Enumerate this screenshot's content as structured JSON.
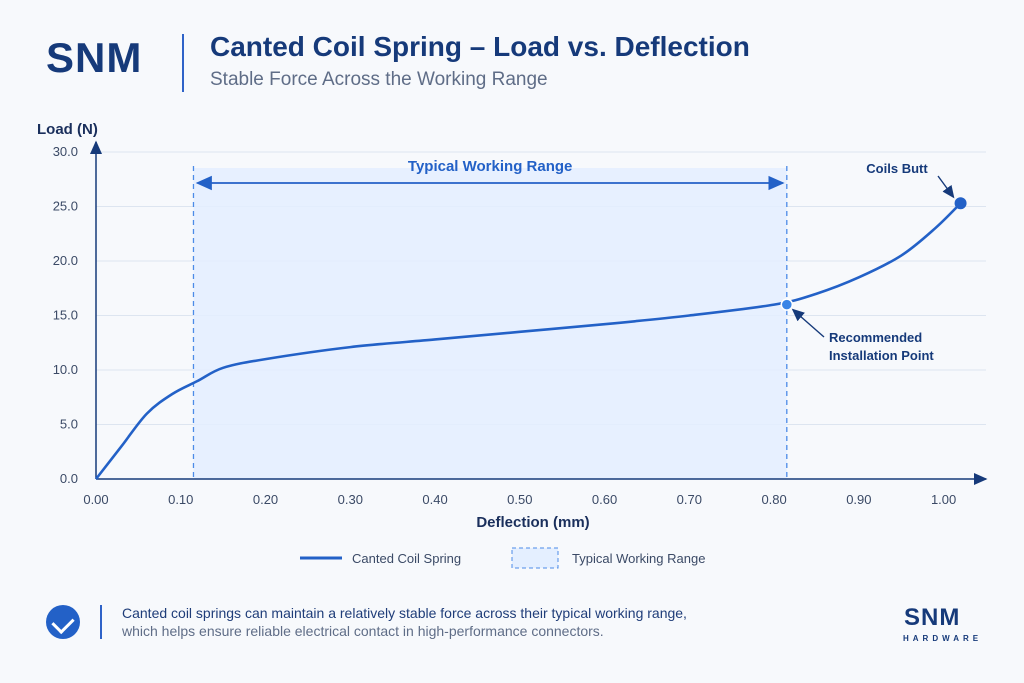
{
  "brand": "SNM",
  "title": "Canted Coil Spring – Load vs. Deflection",
  "subtitle": "Stable Force Across the Working Range",
  "footer": {
    "line1": "Canted coil springs can maintain a relatively stable force across their typical working range,",
    "line2": "which helps ensure reliable electrical contact in high-performance connectors."
  },
  "logo": {
    "main": "SNM",
    "sub": "HARDWARE"
  },
  "chart_data": {
    "type": "line",
    "xlabel": "Deflection (mm)",
    "ylabel": "Load (N)",
    "xlim": [
      0,
      1.05
    ],
    "ylim": [
      0,
      30
    ],
    "x_ticks": [
      "0.00",
      "0.10",
      "0.20",
      "0.30",
      "0.40",
      "0.50",
      "0.60",
      "0.70",
      "0.80",
      "0.90",
      "1.00"
    ],
    "y_ticks": [
      "0.0",
      "5.0",
      "10.0",
      "15.0",
      "20.0",
      "25.0",
      "30.0"
    ],
    "grid": true,
    "series": [
      {
        "name": "Canted Coil Spring",
        "x": [
          0.0,
          0.03,
          0.06,
          0.09,
          0.12,
          0.15,
          0.2,
          0.3,
          0.4,
          0.5,
          0.6,
          0.7,
          0.8,
          0.85,
          0.9,
          0.95,
          0.99,
          1.02
        ],
        "y": [
          0.0,
          3.0,
          6.0,
          7.8,
          9.0,
          10.2,
          11.0,
          12.1,
          12.8,
          13.5,
          14.2,
          15.0,
          16.0,
          17.0,
          18.5,
          20.5,
          23.0,
          25.3
        ]
      }
    ],
    "working_range": {
      "label": "Typical Working Range",
      "start": 0.115,
      "end": 0.815
    },
    "annotations": [
      {
        "text": "Coils Butt",
        "x": 1.02,
        "y": 25.3
      },
      {
        "text": "Recommended Installation Point",
        "lines": [
          "Recommended",
          "Installation Point"
        ],
        "x": 0.815,
        "y": 16.0
      }
    ],
    "legend": [
      "Canted Coil Spring",
      "Typical Working Range"
    ],
    "colors": {
      "line": "#2361c7",
      "range_fill": "#e4efff",
      "range_border": "#4b8be8",
      "axis": "#163a7a",
      "grid": "#dde5f0"
    }
  }
}
